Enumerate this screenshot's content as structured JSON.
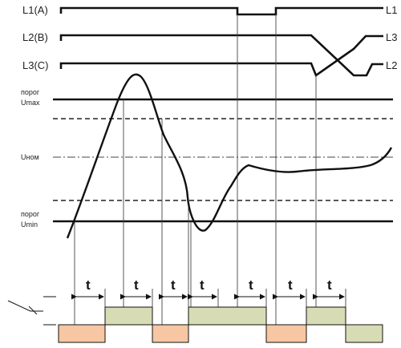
{
  "phases": {
    "l1_left": "L1(A)",
    "l2_left": "L2(B)",
    "l3_left": "L3(C)",
    "l1_right": "L1",
    "l3_right": "L3",
    "l2_right": "L2"
  },
  "thresholds": {
    "umax_line1": "порог",
    "umax_line2": "Umax",
    "unom": "Uном",
    "umin_line1": "порог",
    "umin_line2": "Umin"
  },
  "delay_label": "t",
  "colors": {
    "contact_closed": "#f7c6a2",
    "contact_switched": "#d8dcb4"
  }
}
